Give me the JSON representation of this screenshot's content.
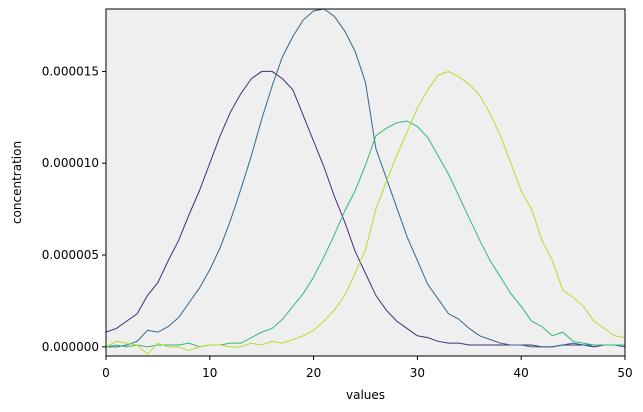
{
  "chart_data": {
    "type": "line",
    "title": "",
    "xlabel": "values",
    "ylabel": "concentration",
    "xlim": [
      0,
      50
    ],
    "ylim": [
      -5e-07,
      1.84e-05
    ],
    "xticks": [
      0,
      10,
      20,
      30,
      40,
      50
    ],
    "xtick_labels": [
      "0",
      "10",
      "20",
      "30",
      "40",
      "50"
    ],
    "yticks": [
      0,
      5e-06,
      1e-05,
      1.5e-05
    ],
    "ytick_labels": [
      "0.000000",
      "0.000005",
      "0.000010",
      "0.000015"
    ],
    "grid": false,
    "legend": "none",
    "background": "#efefef",
    "x": [
      0,
      1,
      2,
      3,
      4,
      5,
      6,
      7,
      8,
      9,
      10,
      11,
      12,
      13,
      14,
      15,
      16,
      17,
      18,
      19,
      20,
      21,
      22,
      23,
      24,
      25,
      26,
      27,
      28,
      29,
      30,
      31,
      32,
      33,
      34,
      35,
      36,
      37,
      38,
      39,
      40,
      41,
      42,
      43,
      44,
      45,
      46,
      47,
      48,
      49,
      50
    ],
    "series": [
      {
        "color": "#472c7a",
        "values": [
          8e-07,
          1e-06,
          1.4e-06,
          1.8e-06,
          2.8e-06,
          3.5e-06,
          4.7e-06,
          5.8e-06,
          7.2e-06,
          8.5e-06,
          1e-05,
          1.15e-05,
          1.28e-05,
          1.38e-05,
          1.46e-05,
          1.5e-05,
          1.5e-05,
          1.46e-05,
          1.4e-05,
          1.26e-05,
          1.12e-05,
          9.8e-06,
          8.2e-06,
          6.8e-06,
          5.2e-06,
          4e-06,
          2.8e-06,
          2e-06,
          1.4e-06,
          1e-06,
          6e-07,
          5e-07,
          3e-07,
          2e-07,
          2e-07,
          1e-07,
          1e-07,
          1e-07,
          1e-07,
          1e-07,
          1e-07,
          1e-07,
          0.0,
          0.0,
          1e-07,
          1e-07,
          1e-07,
          0.0,
          1e-07,
          1e-07,
          0.0
        ]
      },
      {
        "color": "#31688e",
        "values": [
          0.0,
          0.0,
          1e-07,
          3e-07,
          9e-07,
          8e-07,
          1.1e-06,
          1.6e-06,
          2.4e-06,
          3.2e-06,
          4.2e-06,
          5.4e-06,
          6.9e-06,
          8.6e-06,
          1.04e-05,
          1.24e-05,
          1.42e-05,
          1.58e-05,
          1.69e-05,
          1.78e-05,
          1.83e-05,
          1.84e-05,
          1.8e-05,
          1.72e-05,
          1.61e-05,
          1.44e-05,
          1.08e-05,
          9.2e-06,
          7.6e-06,
          6e-06,
          4.7e-06,
          3.4e-06,
          2.6e-06,
          1.8e-06,
          1.5e-06,
          1e-06,
          6e-07,
          4e-07,
          2e-07,
          1e-07,
          1e-07,
          0.0,
          0.0,
          0.0,
          1e-07,
          2e-07,
          1e-07,
          1e-07,
          1e-07,
          1e-07,
          0.0
        ]
      },
      {
        "color": "#35b779",
        "values": [
          0.0,
          1e-07,
          0.0,
          1e-07,
          0.0,
          1e-07,
          1e-07,
          1e-07,
          2e-07,
          0.0,
          1e-07,
          1e-07,
          2e-07,
          2e-07,
          5e-07,
          8e-07,
          1e-06,
          1.5e-06,
          2.2e-06,
          2.9e-06,
          3.8e-06,
          4.9e-06,
          6.1e-06,
          7.4e-06,
          8.5e-06,
          9.9e-06,
          1.15e-05,
          1.19e-05,
          1.22e-05,
          1.23e-05,
          1.2e-05,
          1.14e-05,
          1.04e-05,
          9.4e-06,
          8.2e-06,
          7e-06,
          5.8e-06,
          4.7e-06,
          3.8e-06,
          2.9e-06,
          2.2e-06,
          1.4e-06,
          1.1e-06,
          6e-07,
          8e-07,
          3e-07,
          2e-07,
          1e-07,
          1e-07,
          1e-07,
          1e-07
        ]
      },
      {
        "color": "#b5de2b",
        "values": [
          0.0,
          3e-07,
          2e-07,
          1e-07,
          -4e-07,
          2e-07,
          0.0,
          0.0,
          -2e-07,
          0.0,
          1e-07,
          1e-07,
          0.0,
          0.0,
          2e-07,
          1e-07,
          3e-07,
          2e-07,
          4e-07,
          6e-07,
          9e-07,
          1.4e-06,
          2e-06,
          2.8e-06,
          4e-06,
          5.3e-06,
          7.5e-06,
          9e-06,
          1.04e-05,
          1.17e-05,
          1.3e-05,
          1.4e-05,
          1.48e-05,
          1.5e-05,
          1.47e-05,
          1.43e-05,
          1.37e-05,
          1.27e-05,
          1.15e-05,
          1e-05,
          8.5e-06,
          7.5e-06,
          5.8e-06,
          4.7e-06,
          3.1e-06,
          2.7e-06,
          2.2e-06,
          1.4e-06,
          1e-06,
          6e-07,
          5e-07
        ]
      }
    ]
  }
}
